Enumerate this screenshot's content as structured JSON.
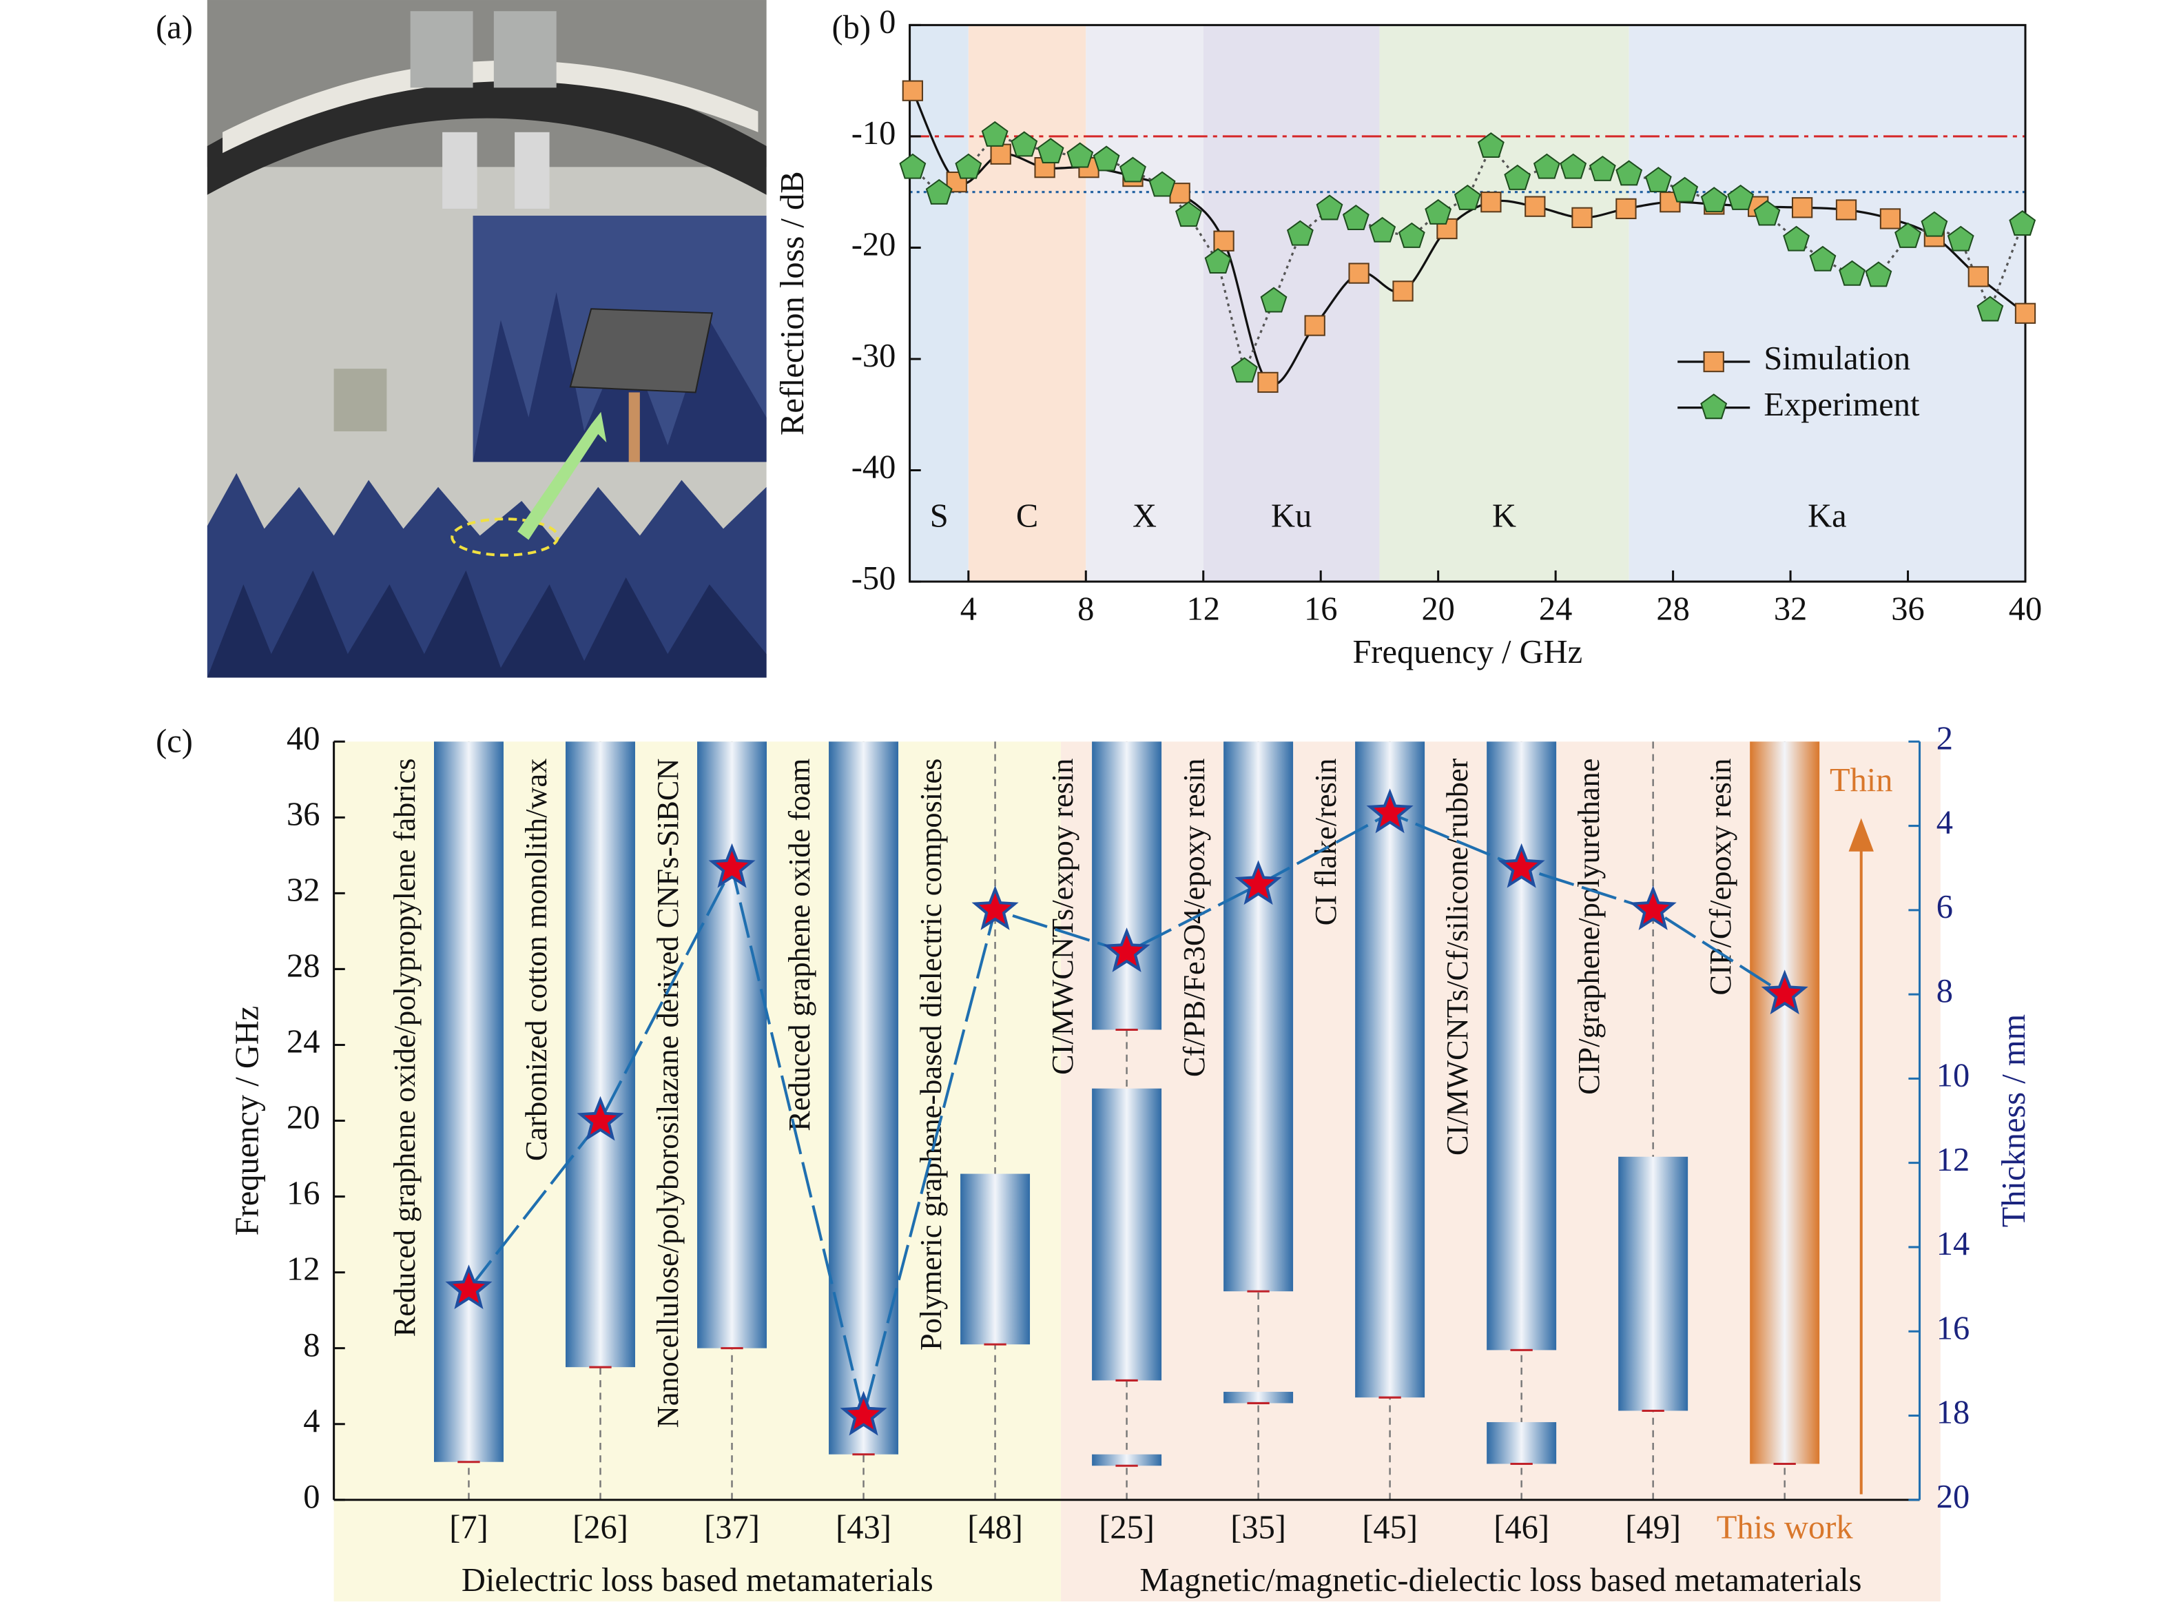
{
  "panel_a": {
    "label": "(a)"
  },
  "chart_data": [
    {
      "type": "line",
      "label": "(b)",
      "xlabel": "Frequency / GHz",
      "ylabel": "Reflection loss / dB",
      "xlim": [
        2,
        40
      ],
      "xticks": [
        4,
        8,
        12,
        16,
        20,
        24,
        28,
        32,
        36,
        40
      ],
      "ylim": [
        -50,
        0
      ],
      "yticks": [
        0,
        -10,
        -20,
        -30,
        -40,
        -50
      ],
      "bands": [
        {
          "name": "S",
          "range": [
            2,
            4
          ],
          "color": "#dde8f4"
        },
        {
          "name": "C",
          "range": [
            4,
            8
          ],
          "color": "#fbe4d5"
        },
        {
          "name": "X",
          "range": [
            8,
            12
          ],
          "color": "#ececf3"
        },
        {
          "name": "Ku",
          "range": [
            12,
            18
          ],
          "color": "#e3e1ee"
        },
        {
          "name": "K",
          "range": [
            18,
            26.5
          ],
          "color": "#e7efdf"
        },
        {
          "name": "Ka",
          "range": [
            26.5,
            40
          ],
          "color": "#e3eaf5"
        }
      ],
      "reference_lines": [
        {
          "value": -10,
          "color": "#d62728",
          "style": "dashdot"
        },
        {
          "value": -15,
          "color": "#1f5fa0",
          "style": "dotted"
        }
      ],
      "legend": "center right",
      "series": [
        {
          "name": "Simulation",
          "color": "#f4a25a",
          "marker": "square",
          "line": "solid",
          "x": [
            2.1,
            3.6,
            5.1,
            6.6,
            8.1,
            9.6,
            11.2,
            12.7,
            14.2,
            15.8,
            17.3,
            18.8,
            20.3,
            21.8,
            23.3,
            24.9,
            26.4,
            27.9,
            29.4,
            30.9,
            32.4,
            33.9,
            35.4,
            36.9,
            38.4,
            40
          ],
          "values": [
            -5.9,
            -14.1,
            -11.6,
            -12.8,
            -12.8,
            -13.6,
            -15.1,
            -19.4,
            -32.1,
            -27.0,
            -22.3,
            -23.9,
            -18.3,
            -15.9,
            -16.3,
            -17.3,
            -16.5,
            -15.9,
            -16.1,
            -16.3,
            -16.4,
            -16.6,
            -17.4,
            -19.0,
            -22.6,
            -25.9
          ]
        },
        {
          "name": "Experiment",
          "color": "#5cb85c",
          "marker": "pentagon",
          "line": "dotted",
          "x": [
            2.1,
            3.0,
            4.0,
            4.9,
            5.9,
            6.8,
            7.8,
            8.7,
            9.6,
            10.6,
            11.5,
            12.5,
            13.4,
            14.4,
            15.3,
            16.3,
            17.2,
            18.1,
            19.1,
            20.0,
            21.0,
            21.8,
            22.7,
            23.7,
            24.6,
            25.6,
            26.5,
            27.5,
            28.4,
            29.4,
            30.3,
            31.2,
            32.2,
            33.1,
            34.1,
            35.0,
            36.0,
            36.9,
            37.8,
            38.8,
            39.9
          ],
          "values": [
            -12.8,
            -15.1,
            -12.8,
            -9.9,
            -10.8,
            -11.4,
            -11.8,
            -12.1,
            -13.1,
            -14.4,
            -17.1,
            -21.3,
            -31.1,
            -24.8,
            -18.8,
            -16.5,
            -17.4,
            -18.5,
            -19.0,
            -16.9,
            -15.6,
            -10.9,
            -13.8,
            -12.8,
            -12.8,
            -13.0,
            -13.4,
            -14.0,
            -14.9,
            -15.8,
            -15.6,
            -17.0,
            -19.3,
            -21.1,
            -22.4,
            -22.5,
            -19.0,
            -18.0,
            -19.3,
            -25.6,
            -17.9
          ]
        }
      ]
    },
    {
      "type": "floating_bar",
      "label": "(c)",
      "ylabel": "Frequency / GHz",
      "y2label": "Thickness / mm",
      "ylim": [
        0,
        40
      ],
      "yticks": [
        0,
        4,
        8,
        12,
        16,
        20,
        24,
        28,
        32,
        36,
        40
      ],
      "y2lim": [
        20,
        2
      ],
      "y2ticks": [
        2,
        4,
        6,
        8,
        10,
        12,
        14,
        16,
        18,
        20
      ],
      "categories": [
        "[7]",
        "[26]",
        "[37]",
        "[43]",
        "[48]",
        "[25]",
        "[35]",
        "[45]",
        "[46]",
        "[49]",
        "This work"
      ],
      "materials": [
        "Reduced graphene oxide/polypropylene fabrics",
        "Carbonized cotton monolith/wax",
        "Nanocellulose/polyborosilazane derived CNFs-SiBCN",
        "Reduced graphene oxide foam",
        "Polymeric graphene-based dielectric composites",
        "CI/MWCNTs/expoy resin",
        "Cf/PB/Fe3O4/epoxy resin",
        "CI flake/resin",
        "CI/MWCNTs/Cf/silicone/rubber",
        "CIP/graphene/polyurethane",
        "CIP/Cf/epoxy resin"
      ],
      "groups": [
        {
          "name": "Dielectric loss based metamaterials",
          "count": 5,
          "color": "#fbf9df"
        },
        {
          "name": "Magnetic/magnetic-dielectic loss based metamaterials",
          "count": 6,
          "color": "#fbece3"
        }
      ],
      "series": [
        {
          "ranges": [
            [
              [
                2,
                40
              ]
            ],
            [
              [
                7,
                40
              ]
            ],
            [
              [
                8,
                40
              ]
            ],
            [
              [
                2.4,
                40
              ]
            ],
            [
              [
                8.2,
                17.2
              ]
            ],
            [
              [
                24.8,
                40
              ],
              [
                6.3,
                21.7
              ],
              [
                1.8,
                2.4
              ]
            ],
            [
              [
                11,
                40
              ],
              [
                5.1,
                5.7
              ]
            ],
            [
              [
                5.4,
                40
              ]
            ],
            [
              [
                7.9,
                40
              ],
              [
                1.9,
                4.1
              ]
            ],
            [
              [
                4.7,
                18.1
              ]
            ],
            [
              [
                1.9,
                40
              ]
            ]
          ],
          "colors": [
            "#2e6aa5",
            "#2e6aa5",
            "#2e6aa5",
            "#2e6aa5",
            "#2e6aa5",
            "#2e6aa5",
            "#2e6aa5",
            "#2e6aa5",
            "#2e6aa5",
            "#2e6aa5",
            "#d9772b"
          ]
        },
        {
          "values": [
            15.0,
            11.0,
            5.0,
            18.0,
            6.0,
            7.0,
            5.4,
            3.7,
            5.0,
            6.0,
            8.0
          ],
          "axis": "y2",
          "color": "#e3001b",
          "line_color": "#1f6fb0",
          "marker": "star"
        }
      ],
      "annotation": {
        "text": "Thin",
        "color": "#d9772b"
      }
    }
  ]
}
